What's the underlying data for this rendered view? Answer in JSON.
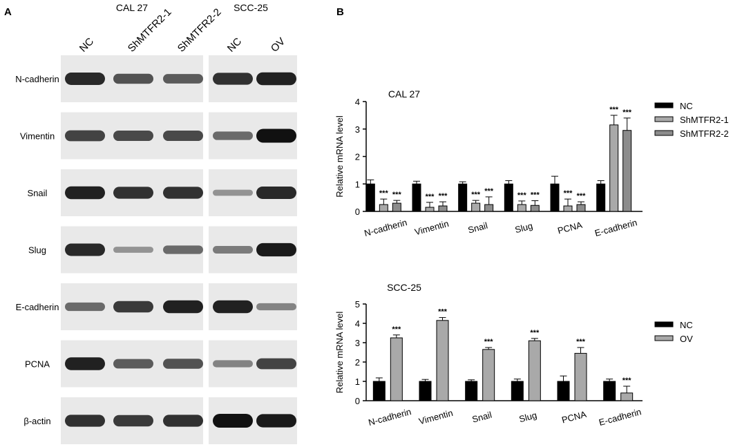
{
  "panel_a": {
    "letter": "A",
    "cell_lines": [
      {
        "name": "CAL 27",
        "lanes": [
          "NC",
          "ShMTFR2-1",
          "ShMTFR2-2"
        ]
      },
      {
        "name": "SCC-25",
        "lanes": [
          "NC",
          "OV"
        ]
      }
    ],
    "blot_rows": [
      {
        "label": "N-cadherin",
        "cal27": [
          0.85,
          0.6,
          0.55
        ],
        "scc25": [
          0.8,
          0.9
        ]
      },
      {
        "label": "Vimentin",
        "cal27": [
          0.7,
          0.65,
          0.65
        ],
        "scc25": [
          0.45,
          1.0
        ]
      },
      {
        "label": "Snail",
        "cal27": [
          0.9,
          0.8,
          0.8
        ],
        "scc25": [
          0.2,
          0.85
        ]
      },
      {
        "label": "Slug",
        "cal27": [
          0.85,
          0.2,
          0.45
        ],
        "scc25": [
          0.35,
          0.95
        ]
      },
      {
        "label": "E-cadherin",
        "cal27": [
          0.45,
          0.75,
          0.9
        ],
        "scc25": [
          0.9,
          0.3
        ]
      },
      {
        "label": "PCNA",
        "cal27": [
          0.9,
          0.55,
          0.6
        ],
        "scc25": [
          0.3,
          0.7
        ]
      },
      {
        "label": "β-actin",
        "cal27": [
          0.8,
          0.75,
          0.8
        ],
        "scc25": [
          1.0,
          0.95
        ]
      }
    ]
  },
  "panel_b": {
    "letter": "B"
  },
  "colors": {
    "nc": "#000000",
    "treated": "#a9a9a9",
    "treated2": "#8c8c8c",
    "blot_bg": "#e9e9e9",
    "band": "#111111"
  },
  "chart_data": [
    {
      "type": "bar",
      "title": "CAL 27",
      "ylabel": "Relative mRNA level",
      "xlabel": "",
      "ylim": [
        0,
        4
      ],
      "yticks": [
        "0",
        "1",
        "2",
        "3",
        "4"
      ],
      "categories": [
        "N-cadherin",
        "Vimentin",
        "Snail",
        "Slug",
        "PCNA",
        "E-cadherin"
      ],
      "series": [
        {
          "name": "NC",
          "values": [
            1.0,
            1.0,
            1.0,
            1.0,
            1.0,
            1.0
          ],
          "errors": [
            0.15,
            0.1,
            0.08,
            0.12,
            0.28,
            0.12
          ]
        },
        {
          "name": "ShMTFR2-1",
          "values": [
            0.25,
            0.15,
            0.3,
            0.25,
            0.2,
            3.15
          ],
          "errors": [
            0.2,
            0.18,
            0.1,
            0.13,
            0.25,
            0.35
          ]
        },
        {
          "name": "ShMTFR2-2",
          "values": [
            0.3,
            0.2,
            0.25,
            0.22,
            0.25,
            2.95
          ],
          "errors": [
            0.1,
            0.15,
            0.28,
            0.17,
            0.1,
            0.45
          ]
        }
      ],
      "annotations": [
        {
          "category": "N-cadherin",
          "series": "ShMTFR2-1",
          "text": "***"
        },
        {
          "category": "N-cadherin",
          "series": "ShMTFR2-2",
          "text": "***"
        },
        {
          "category": "Vimentin",
          "series": "ShMTFR2-1",
          "text": "***"
        },
        {
          "category": "Vimentin",
          "series": "ShMTFR2-2",
          "text": "***"
        },
        {
          "category": "Snail",
          "series": "ShMTFR2-1",
          "text": "***"
        },
        {
          "category": "Snail",
          "series": "ShMTFR2-2",
          "text": "***"
        },
        {
          "category": "Slug",
          "series": "ShMTFR2-1",
          "text": "***"
        },
        {
          "category": "Slug",
          "series": "ShMTFR2-2",
          "text": "***"
        },
        {
          "category": "PCNA",
          "series": "ShMTFR2-1",
          "text": "***"
        },
        {
          "category": "PCNA",
          "series": "ShMTFR2-2",
          "text": "***"
        },
        {
          "category": "E-cadherin",
          "series": "ShMTFR2-1",
          "text": "***"
        },
        {
          "category": "E-cadherin",
          "series": "ShMTFR2-2",
          "text": "***"
        }
      ],
      "legend": "top-right",
      "grid": false
    },
    {
      "type": "bar",
      "title": "SCC-25",
      "ylabel": "Relative mRNA level",
      "xlabel": "",
      "ylim": [
        0,
        5
      ],
      "yticks": [
        "0",
        "1",
        "2",
        "3",
        "4",
        "5"
      ],
      "categories": [
        "N-cadherin",
        "Vimentin",
        "Snail",
        "Slug",
        "PCNA",
        "E-cadherin"
      ],
      "series": [
        {
          "name": "NC",
          "values": [
            1.0,
            1.0,
            1.0,
            1.0,
            1.0,
            1.0
          ],
          "errors": [
            0.18,
            0.1,
            0.08,
            0.12,
            0.28,
            0.12
          ]
        },
        {
          "name": "OV",
          "values": [
            3.25,
            4.15,
            2.65,
            3.1,
            2.45,
            0.4
          ],
          "errors": [
            0.15,
            0.15,
            0.1,
            0.12,
            0.3,
            0.35
          ]
        }
      ],
      "annotations": [
        {
          "category": "N-cadherin",
          "series": "OV",
          "text": "***"
        },
        {
          "category": "Vimentin",
          "series": "OV",
          "text": "***"
        },
        {
          "category": "Snail",
          "series": "OV",
          "text": "***"
        },
        {
          "category": "Slug",
          "series": "OV",
          "text": "***"
        },
        {
          "category": "PCNA",
          "series": "OV",
          "text": "***"
        },
        {
          "category": "E-cadherin",
          "series": "OV",
          "text": "***"
        }
      ],
      "legend": "top-right",
      "grid": false
    }
  ]
}
